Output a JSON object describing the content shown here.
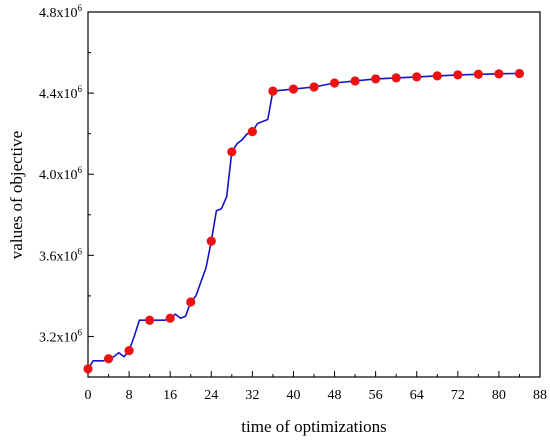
{
  "chart_data": {
    "type": "line",
    "title": "",
    "xlabel": "time of optimizations",
    "ylabel": "values of objective",
    "xlim": [
      0,
      88
    ],
    "ylim": [
      3000000,
      4800000
    ],
    "x_ticks": [
      0,
      8,
      16,
      24,
      32,
      40,
      48,
      56,
      64,
      72,
      80,
      88
    ],
    "x_tick_labels": [
      "0",
      "8",
      "16",
      "24",
      "32",
      "40",
      "48",
      "56",
      "64",
      "72",
      "80",
      "88"
    ],
    "y_ticks": [
      3200000,
      3600000,
      4000000,
      4400000,
      4800000
    ],
    "y_tick_labels": [
      {
        "base": "3.2x10",
        "exp": "6"
      },
      {
        "base": "3.6x10",
        "exp": "6"
      },
      {
        "base": "4.0x10",
        "exp": "6"
      },
      {
        "base": "4.4x10",
        "exp": "6"
      },
      {
        "base": "4.8x10",
        "exp": "6"
      }
    ],
    "grid": false,
    "legend": "none",
    "line_color": "#1515c8",
    "marker_color": "#ee1111",
    "series": [
      {
        "x": [
          0,
          1,
          2,
          3,
          4,
          5,
          6,
          7,
          8,
          9,
          10,
          11,
          12,
          13,
          14,
          15,
          16,
          17,
          18,
          19,
          20,
          21,
          22,
          23,
          24,
          25,
          26,
          27,
          28,
          29,
          30,
          31,
          32,
          33,
          34,
          35,
          36,
          40,
          44,
          48,
          52,
          56,
          60,
          64,
          68,
          72,
          76,
          80,
          84
        ],
        "y": [
          3040000,
          3080000,
          3080000,
          3080000,
          3090000,
          3100000,
          3120000,
          3100000,
          3130000,
          3200000,
          3280000,
          3280000,
          3280000,
          3280000,
          3280000,
          3280000,
          3290000,
          3310000,
          3290000,
          3300000,
          3370000,
          3400000,
          3470000,
          3540000,
          3670000,
          3820000,
          3830000,
          3890000,
          4110000,
          4150000,
          4170000,
          4200000,
          4210000,
          4250000,
          4260000,
          4270000,
          4410000,
          4420000,
          4430000,
          4450000,
          4460000,
          4470000,
          4475000,
          4480000,
          4485000,
          4490000,
          4493000,
          4495000,
          4497000
        ]
      }
    ],
    "markers": {
      "x": [
        0,
        4,
        8,
        12,
        16,
        20,
        24,
        28,
        32,
        36,
        40,
        44,
        48,
        52,
        56,
        60,
        64,
        68,
        72,
        76,
        80,
        84
      ],
      "y": [
        3040000,
        3090000,
        3130000,
        3280000,
        3290000,
        3370000,
        3670000,
        4110000,
        4210000,
        4410000,
        4420000,
        4430000,
        4450000,
        4460000,
        4470000,
        4475000,
        4480000,
        4485000,
        4490000,
        4493000,
        4495000,
        4497000
      ]
    }
  }
}
